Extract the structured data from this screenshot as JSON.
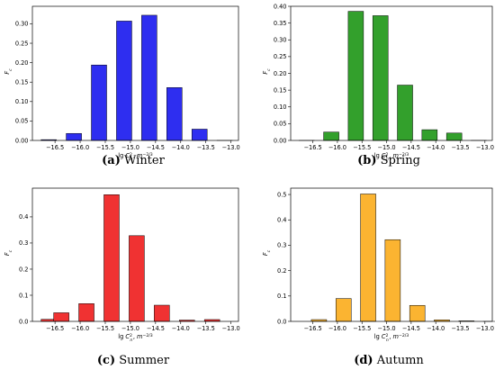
{
  "chart_data": [
    {
      "type": "bar",
      "panel_letter": "(a)",
      "panel_name": "Winter",
      "xlabel": "lg C_n^2, m^{-2/3}",
      "ylabel": "F_c",
      "x": [
        -16.625,
        -16.125,
        -15.625,
        -15.125,
        -14.625,
        -14.125,
        -13.625,
        -13.125
      ],
      "values": [
        0.002,
        0.018,
        0.194,
        0.307,
        0.322,
        0.136,
        0.029,
        0.0
      ],
      "xlim": [
        -16.95,
        -12.85
      ],
      "ylim": [
        0,
        0.345
      ],
      "xticks": [
        -16.5,
        -16.0,
        -15.5,
        -15.0,
        -14.5,
        -14.0,
        -13.5,
        -13.0
      ],
      "xtick_labels": [
        "−16.5",
        "−16.0",
        "−15.5",
        "−15.0",
        "−14.5",
        "−14.0",
        "−13.5",
        "−13.0"
      ],
      "yticks": [
        0,
        0.05,
        0.1,
        0.15,
        0.2,
        0.25,
        0.3
      ],
      "ytick_labels": [
        "0.00",
        "0.05",
        "0.10",
        "0.15",
        "0.20",
        "0.25",
        "0.30"
      ],
      "color": "#2e2ef0",
      "grid": false
    },
    {
      "type": "bar",
      "panel_letter": "(b)",
      "panel_name": "Spring",
      "xlabel": "lg C_n^2, m^{-2/3}",
      "ylabel": "F_c",
      "x": [
        -16.625,
        -16.125,
        -15.625,
        -15.125,
        -14.625,
        -14.125,
        -13.625,
        -13.125
      ],
      "values": [
        0.0,
        0.025,
        0.385,
        0.372,
        0.165,
        0.032,
        0.022,
        0.0
      ],
      "xlim": [
        -16.95,
        -12.85
      ],
      "ylim": [
        0,
        0.4
      ],
      "xticks": [
        -16.5,
        -16.0,
        -15.5,
        -15.0,
        -14.5,
        -14.0,
        -13.5,
        -13.0
      ],
      "xtick_labels": [
        "−16.5",
        "−16.0",
        "−15.5",
        "−15.0",
        "−14.5",
        "−14.0",
        "−13.5",
        "−13.0"
      ],
      "yticks": [
        0,
        0.05,
        0.1,
        0.15,
        0.2,
        0.25,
        0.3,
        0.35,
        0.4
      ],
      "ytick_labels": [
        "0.00",
        "0.05",
        "0.10",
        "0.15",
        "0.20",
        "0.25",
        "0.30",
        "0.35",
        "0.40"
      ],
      "color": "#33a02c",
      "grid": false
    },
    {
      "type": "bar",
      "panel_letter": "(c)",
      "panel_name": "Summer",
      "xlabel": "lg C_n^2, m^{-2/3}",
      "ylabel": "F_c",
      "x": [
        -16.625,
        -16.375,
        -15.875,
        -15.375,
        -14.875,
        -14.375,
        -13.875,
        -13.375
      ],
      "values": [
        0.008,
        0.033,
        0.068,
        0.485,
        0.328,
        0.062,
        0.005,
        0.007
      ],
      "xlim": [
        -16.95,
        -12.85
      ],
      "ylim": [
        0,
        0.51
      ],
      "xticks": [
        -16.5,
        -16.0,
        -15.5,
        -15.0,
        -14.5,
        -14.0,
        -13.5,
        -13.0
      ],
      "xtick_labels": [
        "−16.5",
        "−16.0",
        "−15.5",
        "−15.0",
        "−14.5",
        "−14.0",
        "−13.5",
        "−13.0"
      ],
      "yticks": [
        0,
        0.1,
        0.2,
        0.3,
        0.4
      ],
      "ytick_labels": [
        "0.0",
        "0.1",
        "0.2",
        "0.3",
        "0.4"
      ],
      "color": "#f03232",
      "grid": false
    },
    {
      "type": "bar",
      "panel_letter": "(d)",
      "panel_name": "Autumn",
      "xlabel": "lg C_n^2, m^{-2/3}",
      "ylabel": "F_c",
      "x": [
        -16.375,
        -15.875,
        -15.375,
        -14.875,
        -14.375,
        -13.875,
        -13.375,
        -12.875
      ],
      "values": [
        0.007,
        0.09,
        0.502,
        0.322,
        0.063,
        0.006,
        0.002,
        0.0
      ],
      "xlim": [
        -16.95,
        -12.85
      ],
      "ylim": [
        0,
        0.525
      ],
      "xticks": [
        -16.5,
        -16.0,
        -15.5,
        -15.0,
        -14.5,
        -14.0,
        -13.5,
        -13.0
      ],
      "xtick_labels": [
        "−16.5",
        "−16.0",
        "−15.5",
        "−15.0",
        "−14.5",
        "−14.0",
        "−13.5",
        "−13.0"
      ],
      "yticks": [
        0,
        0.1,
        0.2,
        0.3,
        0.4,
        0.5
      ],
      "ytick_labels": [
        "0.0",
        "0.1",
        "0.2",
        "0.3",
        "0.4",
        "0.5"
      ],
      "color": "#fbb431",
      "grid": false
    }
  ]
}
